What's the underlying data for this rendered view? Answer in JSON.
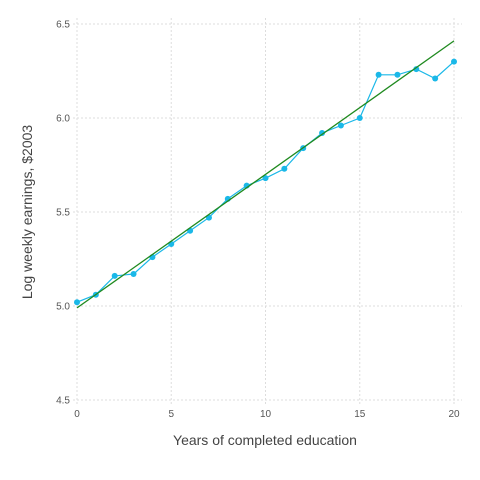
{
  "chart_data": {
    "type": "line",
    "xlabel": "Years of completed education",
    "ylabel": "Log weekly earnings, $2003",
    "xlim": [
      0,
      20
    ],
    "ylim": [
      4.5,
      6.5
    ],
    "x_ticks": [
      0,
      5,
      10,
      15,
      20
    ],
    "y_ticks": [
      4.5,
      5.0,
      5.5,
      6.0,
      6.5
    ],
    "y_tick_labels": [
      "4.5",
      "5.0",
      "5.5",
      "6.0",
      "6.5"
    ],
    "grid": true,
    "series": [
      {
        "kind": "line-with-markers",
        "color": "#1ab8e8",
        "x": [
          0,
          1,
          2,
          3,
          4,
          5,
          6,
          7,
          8,
          9,
          10,
          11,
          12,
          13,
          14,
          15,
          16,
          17,
          18,
          19,
          20
        ],
        "y": [
          5.02,
          5.06,
          5.16,
          5.17,
          5.26,
          5.33,
          5.4,
          5.47,
          5.57,
          5.64,
          5.68,
          5.73,
          5.84,
          5.92,
          5.96,
          6.0,
          6.23,
          6.23,
          6.26,
          6.21,
          6.3
        ]
      },
      {
        "kind": "fit-line",
        "color": "#1f8a1f",
        "x": [
          0,
          20
        ],
        "y": [
          4.99,
          6.41
        ]
      }
    ]
  }
}
